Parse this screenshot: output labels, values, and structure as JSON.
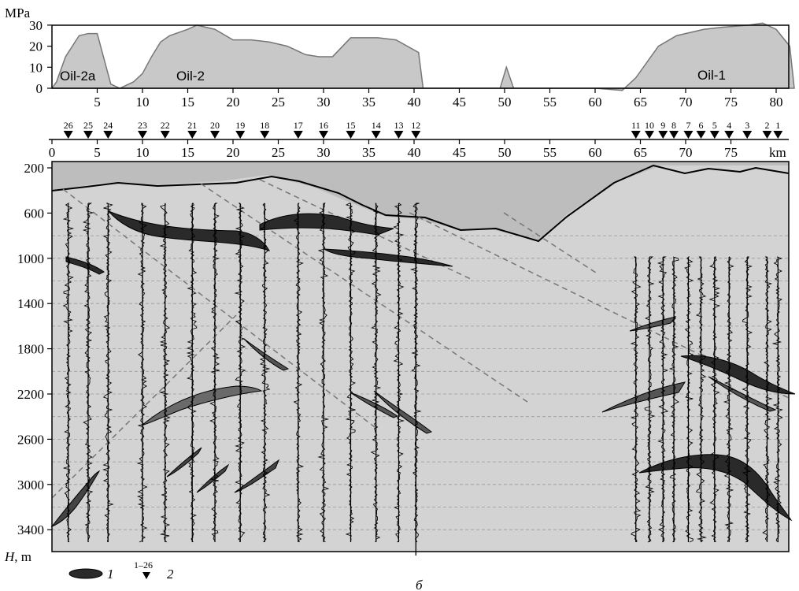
{
  "top_panel": {
    "unit": "MPa",
    "y_ticks": [
      "30",
      "20",
      "10",
      "0"
    ],
    "x_ticks": [
      "5",
      "10",
      "15",
      "20",
      "25",
      "30",
      "35",
      "40",
      "45",
      "50",
      "55",
      "60",
      "65",
      "70",
      "75",
      "80"
    ],
    "field_labels": [
      "Oil-2a",
      "Oil-2",
      "Oil-1"
    ],
    "pressure_profile": {
      "x_km": [
        0,
        0.5,
        1.5,
        3,
        4,
        5,
        6.5,
        7.5,
        9,
        10,
        11,
        12,
        13,
        15,
        16,
        18,
        20,
        22,
        24,
        26,
        28,
        29.5,
        31,
        33,
        36,
        38,
        40.5,
        41,
        45,
        49.5,
        50.2,
        51,
        55,
        60,
        63,
        64.5,
        66,
        67,
        69,
        72,
        74,
        77,
        78.5,
        80,
        81.5,
        82
      ],
      "mpa": [
        0,
        3,
        15,
        25,
        26,
        26,
        2,
        0,
        3,
        7,
        15,
        22,
        25,
        28,
        30,
        28,
        23,
        23,
        22,
        20,
        16,
        15,
        15,
        24,
        24,
        23,
        17,
        0,
        0,
        0,
        10,
        0,
        0,
        0,
        -1,
        5,
        14,
        20,
        25,
        28,
        29,
        30,
        31,
        28,
        20,
        0
      ]
    }
  },
  "well_axis": {
    "unit": "km",
    "ticks": [
      "0",
      "5",
      "10",
      "15",
      "20",
      "25",
      "30",
      "35",
      "40",
      "45",
      "50",
      "55",
      "60",
      "65",
      "70",
      "75"
    ],
    "wells": [
      {
        "n": "26",
        "km": 1.8
      },
      {
        "n": "25",
        "km": 4
      },
      {
        "n": "24",
        "km": 6.2
      },
      {
        "n": "23",
        "km": 10
      },
      {
        "n": "22",
        "km": 12.5
      },
      {
        "n": "21",
        "km": 15.5
      },
      {
        "n": "20",
        "km": 18
      },
      {
        "n": "19",
        "km": 20.8
      },
      {
        "n": "18",
        "km": 23.5
      },
      {
        "n": "17",
        "km": 27.2
      },
      {
        "n": "16",
        "km": 30
      },
      {
        "n": "15",
        "km": 33
      },
      {
        "n": "14",
        "km": 35.8
      },
      {
        "n": "13",
        "km": 38.3
      },
      {
        "n": "12",
        "km": 40.2
      },
      {
        "n": "11",
        "km": 64.5
      },
      {
        "n": "10",
        "km": 66
      },
      {
        "n": "9",
        "km": 67.5
      },
      {
        "n": "8",
        "km": 68.7
      },
      {
        "n": "7",
        "km": 70.3
      },
      {
        "n": "6",
        "km": 71.7
      },
      {
        "n": "5",
        "km": 73.2
      },
      {
        "n": "4",
        "km": 74.8
      },
      {
        "n": "3",
        "km": 76.8
      },
      {
        "n": "2",
        "km": 79
      },
      {
        "n": "1",
        "km": 80.2
      }
    ]
  },
  "section": {
    "depth_ticks": [
      "200",
      "600",
      "1000",
      "1400",
      "1800",
      "2200",
      "2600",
      "3000",
      "3400"
    ],
    "depth_axis_label": "H, m"
  },
  "legend": {
    "item1_label": "1",
    "item2_superscript": "1–26",
    "item2_label": "2"
  },
  "caption": "б"
}
